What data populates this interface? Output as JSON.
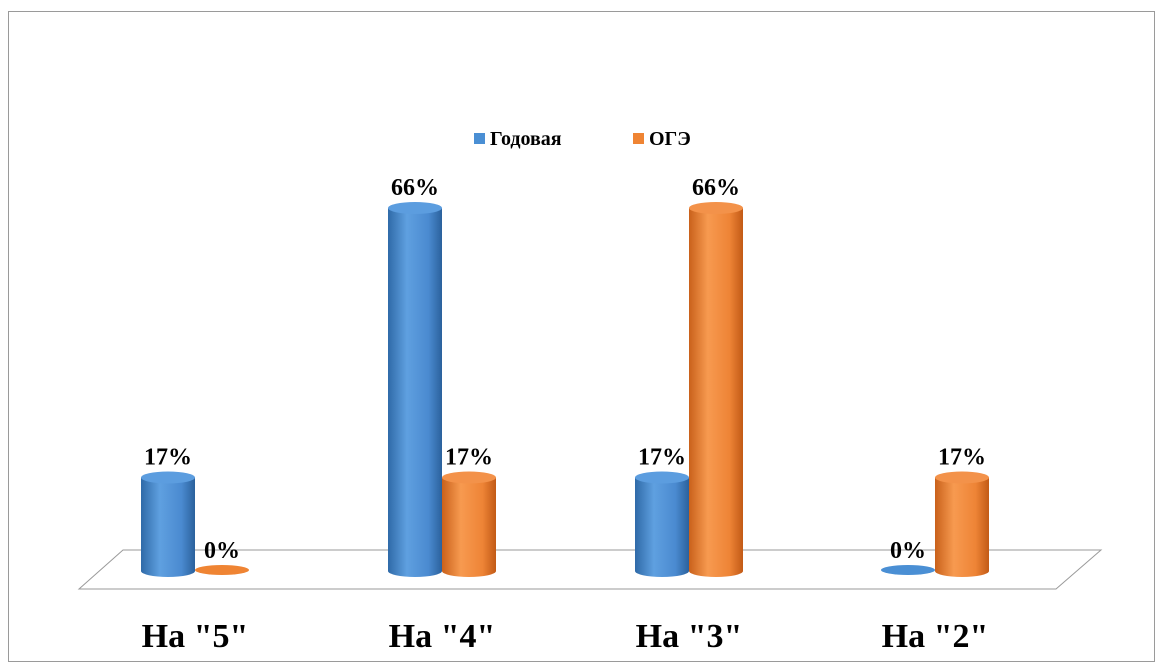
{
  "chart_data": {
    "type": "bar",
    "title": "",
    "xlabel": "",
    "ylabel": "",
    "categories": [
      "На \"5\"",
      "На \"4\"",
      "На \"3\"",
      "На \"2\""
    ],
    "series": [
      {
        "name": "Годовая",
        "values": [
          17,
          66,
          17,
          0
        ],
        "labels": [
          "17%",
          "66%",
          "17%",
          "0%"
        ],
        "color": "#4a8fd4"
      },
      {
        "name": "ОГЭ",
        "values": [
          0,
          17,
          66,
          17
        ],
        "labels": [
          "0%",
          "17%",
          "66%",
          "17%"
        ],
        "color": "#ef8433"
      }
    ],
    "ylim": [
      0,
      70
    ],
    "grid": false,
    "legend": "top-center",
    "style": "3d-cylinder"
  }
}
